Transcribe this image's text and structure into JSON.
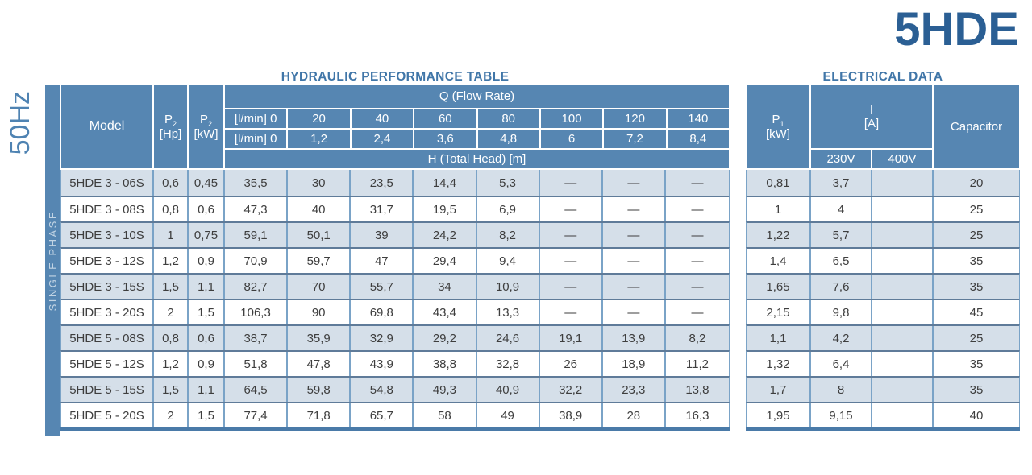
{
  "page": {
    "product_title": "5HDE",
    "frequency_label": "50Hz",
    "phase_label": "SINGLE PHASE"
  },
  "colors": {
    "header_blue": "#5686B2",
    "stripe_blue": "#D5DFE9",
    "product_title_blue": "#2B5F94",
    "section_title_blue": "#4076A8",
    "cell_border_light": "#7AA3C7",
    "row_border_dark": "#5F7B99",
    "table_bottom_border": "#4A7AA8",
    "data_text": "#3E3E3E",
    "phase_text": "#C2D4E4",
    "frequency_text": "#4F83B2"
  },
  "hydraulic": {
    "title": "HYDRAULIC PERFORMANCE TABLE",
    "header": {
      "model": "Model",
      "p2_symbol": "P",
      "p2_sub": "2",
      "hp_unit": "[Hp]",
      "kw_unit": "[kW]",
      "q_label": "Q (Flow Rate)",
      "flow_row1_label": "[l/min] 0",
      "flow_row1": [
        "20",
        "40",
        "60",
        "80",
        "100",
        "120",
        "140"
      ],
      "flow_row2_label": "[l/min] 0",
      "flow_row2": [
        "1,2",
        "2,4",
        "3,6",
        "4,8",
        "6",
        "7,2",
        "8,4"
      ],
      "head_label": "H (Total Head) [m]"
    },
    "rows": [
      {
        "model": "5HDE 3 - 06S",
        "p2_hp": "0,6",
        "p2_kw": "0,45",
        "values": [
          "35,5",
          "30",
          "23,5",
          "14,4",
          "5,3",
          "—",
          "—",
          "—"
        ]
      },
      {
        "model": "5HDE 3 - 08S",
        "p2_hp": "0,8",
        "p2_kw": "0,6",
        "values": [
          "47,3",
          "40",
          "31,7",
          "19,5",
          "6,9",
          "—",
          "—",
          "—"
        ]
      },
      {
        "model": "5HDE 3 - 10S",
        "p2_hp": "1",
        "p2_kw": "0,75",
        "values": [
          "59,1",
          "50,1",
          "39",
          "24,2",
          "8,2",
          "—",
          "—",
          "—"
        ]
      },
      {
        "model": "5HDE 3 - 12S",
        "p2_hp": "1,2",
        "p2_kw": "0,9",
        "values": [
          "70,9",
          "59,7",
          "47",
          "29,4",
          "9,4",
          "—",
          "—",
          "—"
        ]
      },
      {
        "model": "5HDE 3 - 15S",
        "p2_hp": "1,5",
        "p2_kw": "1,1",
        "values": [
          "82,7",
          "70",
          "55,7",
          "34",
          "10,9",
          "—",
          "—",
          "—"
        ]
      },
      {
        "model": "5HDE 3 - 20S",
        "p2_hp": "2",
        "p2_kw": "1,5",
        "values": [
          "106,3",
          "90",
          "69,8",
          "43,4",
          "13,3",
          "—",
          "—",
          "—"
        ]
      },
      {
        "model": "5HDE 5 - 08S",
        "p2_hp": "0,8",
        "p2_kw": "0,6",
        "values": [
          "38,7",
          "35,9",
          "32,9",
          "29,2",
          "24,6",
          "19,1",
          "13,9",
          "8,2"
        ]
      },
      {
        "model": "5HDE 5 - 12S",
        "p2_hp": "1,2",
        "p2_kw": "0,9",
        "values": [
          "51,8",
          "47,8",
          "43,9",
          "38,8",
          "32,8",
          "26",
          "18,9",
          "11,2"
        ]
      },
      {
        "model": "5HDE 5 - 15S",
        "p2_hp": "1,5",
        "p2_kw": "1,1",
        "values": [
          "64,5",
          "59,8",
          "54,8",
          "49,3",
          "40,9",
          "32,2",
          "23,3",
          "13,8"
        ]
      },
      {
        "model": "5HDE 5 - 20S",
        "p2_hp": "2",
        "p2_kw": "1,5",
        "values": [
          "77,4",
          "71,8",
          "65,7",
          "58",
          "49",
          "38,9",
          "28",
          "16,3"
        ]
      }
    ]
  },
  "electrical": {
    "title": "ELECTRICAL DATA",
    "header": {
      "p1_symbol": "P",
      "p1_sub": "1",
      "p1_unit": "[kW]",
      "current_symbol": "I",
      "current_unit": "[A]",
      "v230": "230V",
      "v400": "400V",
      "capacitor": "Capacitor"
    },
    "rows": [
      {
        "p1": "0,81",
        "i_230v": "3,7",
        "i_400v": "",
        "capacitor": "20"
      },
      {
        "p1": "1",
        "i_230v": "4",
        "i_400v": "",
        "capacitor": "25"
      },
      {
        "p1": "1,22",
        "i_230v": "5,7",
        "i_400v": "",
        "capacitor": "25"
      },
      {
        "p1": "1,4",
        "i_230v": "6,5",
        "i_400v": "",
        "capacitor": "35"
      },
      {
        "p1": "1,65",
        "i_230v": "7,6",
        "i_400v": "",
        "capacitor": "35"
      },
      {
        "p1": "2,15",
        "i_230v": "9,8",
        "i_400v": "",
        "capacitor": "45"
      },
      {
        "p1": "1,1",
        "i_230v": "4,2",
        "i_400v": "",
        "capacitor": "25"
      },
      {
        "p1": "1,32",
        "i_230v": "6,4",
        "i_400v": "",
        "capacitor": "35"
      },
      {
        "p1": "1,7",
        "i_230v": "8",
        "i_400v": "",
        "capacitor": "35"
      },
      {
        "p1": "1,95",
        "i_230v": "9,15",
        "i_400v": "",
        "capacitor": "40"
      }
    ]
  }
}
